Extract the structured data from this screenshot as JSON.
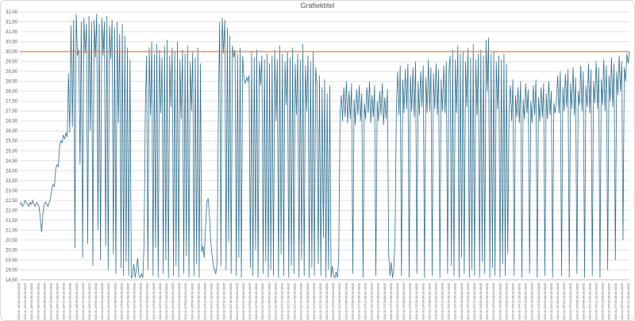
{
  "chart_data": {
    "type": "line",
    "title": "Grafiektitel",
    "legend": "none",
    "grid": true,
    "colors": {
      "grid": "#e0e0e0",
      "axis_line": "#bdbdbd",
      "axis_text": "#595959",
      "title_text": "#595959",
      "background": "#ffffff",
      "border": "#d9d9d9"
    },
    "y_axis": {
      "min": 18.5,
      "max": 32.0,
      "step": 0.5,
      "tick_labels": [
        "32,00",
        "31,50",
        "31,00",
        "30,50",
        "30,00",
        "29,50",
        "29,00",
        "28,50",
        "28,00",
        "27,50",
        "27,00",
        "26,50",
        "26,00",
        "25,50",
        "25,00",
        "24,50",
        "24,00",
        "23,50",
        "23,00",
        "22,50",
        "22,00",
        "21,50",
        "21,00",
        "20,50",
        "20,00",
        "19,50",
        "19,00",
        "18,50"
      ]
    },
    "x_axis": {
      "tick_labels": [
        "2016-01-18T00:00:00.000Z",
        "2016-01-18T02:00:00.000Z",
        "2016-01-18T04:00:00.000Z",
        "2016-01-18T06:00:00.000Z",
        "2016-01-18T08:00:00.000Z",
        "2016-01-18T10:00:00.000Z",
        "2016-01-18T12:00:00.000Z",
        "2016-01-18T14:00:00.000Z",
        "2016-01-18T16:00:00.000Z",
        "2016-01-18T18:00:00.000Z",
        "2016-01-18T20:00:00.000Z",
        "2016-01-18T22:00:00.000Z",
        "2016-01-19T00:00:00.000Z",
        "2016-01-19T02:00:00.000Z",
        "2016-01-19T04:00:00.000Z",
        "2016-01-19T06:00:00.000Z",
        "2016-01-19T08:00:00.000Z",
        "2016-01-19T10:00:00.000Z",
        "2016-01-19T12:00:00.000Z",
        "2016-01-19T14:00:00.000Z",
        "2016-01-19T16:00:00.000Z",
        "2016-01-19T18:00:00.000Z",
        "2016-01-19T20:00:00.000Z",
        "2016-01-19T22:00:00.000Z",
        "2016-01-20T00:00:00.000Z",
        "2016-01-20T02:00:00.000Z",
        "2016-01-20T04:00:00.000Z",
        "2016-01-20T06:00:00.000Z",
        "2016-01-20T08:00:00.000Z",
        "2016-01-20T10:00:00.000Z",
        "2016-01-20T12:00:00.000Z",
        "2016-01-20T14:00:00.000Z",
        "2016-01-20T16:00:00.000Z",
        "2016-01-20T18:00:00.000Z",
        "2016-01-20T20:00:00.000Z",
        "2016-01-20T22:00:00.000Z",
        "2016-01-21T00:00:00.000Z",
        "2016-01-21T02:00:00.000Z",
        "2016-01-21T04:00:00.000Z",
        "2016-01-21T06:00:00.000Z",
        "2016-01-21T08:00:00.000Z",
        "2016-01-21T10:00:00.000Z",
        "2016-01-21T12:00:00.000Z",
        "2016-01-21T14:00:00.000Z",
        "2016-01-21T16:00:00.000Z",
        "2016-01-21T18:00:00.000Z",
        "2016-01-21T20:00:00.000Z",
        "2016-01-21T22:00:00.000Z",
        "2016-01-22T00:00:00.000Z",
        "2016-01-22T02:00:00.000Z",
        "2016-01-22T04:00:00.000Z",
        "2016-01-22T06:00:00.000Z",
        "2016-01-22T08:00:00.000Z",
        "2016-01-22T10:00:00.000Z",
        "2016-01-22T12:00:00.000Z",
        "2016-01-22T14:00:00.000Z",
        "2016-01-22T16:00:00.000Z",
        "2016-01-22T18:00:00.000Z",
        "2016-01-22T20:00:00.000Z",
        "2016-01-22T22:00:00.000Z",
        "2016-01-23T00:00:00.000Z",
        "2016-01-23T02:00:00.000Z",
        "2016-01-23T04:00:00.000Z",
        "2016-01-23T06:00:00.000Z",
        "2016-01-23T08:00:00.000Z",
        "2016-01-23T10:00:00.000Z",
        "2016-01-23T12:00:00.000Z",
        "2016-01-23T14:00:00.000Z",
        "2016-01-23T16:00:00.000Z",
        "2016-01-23T18:00:00.000Z",
        "2016-01-23T20:00:00.000Z",
        "2016-01-23T22:00:00.000Z",
        "2016-01-24T00:00:00.000Z",
        "2016-01-24T02:00:00.000Z",
        "2016-01-24T04:00:00.000Z",
        "2016-01-24T06:00:00.000Z",
        "2016-01-24T08:00:00.000Z",
        "2016-01-24T10:00:00.000Z",
        "2016-01-24T12:00:00.000Z",
        "2016-01-24T14:00:00.000Z",
        "2016-01-24T16:00:00.000Z",
        "2016-01-24T18:00:00.000Z",
        "2016-01-24T20:00:00.000Z",
        "2016-01-24T22:00:00.000Z",
        "2016-01-25T00:00:00.000Z",
        "2016-01-25T02:00:00.000Z",
        "2016-01-25T04:00:00.000Z",
        "2016-01-25T06:00:00.000Z",
        "2016-01-25T08:00:00.000Z",
        "2016-01-25T10:00:00.000Z",
        "2016-01-25T12:00:00.000Z",
        "2016-01-25T14:00:00.000Z",
        "2016-01-25T16:00:00.000Z",
        "2016-01-25T18:00:00.000Z",
        "2016-01-25T20:00:00.000Z",
        "2016-01-25T22:00:00.000Z"
      ]
    },
    "reference_line": {
      "value": 30.0,
      "color": "#ED7D31"
    },
    "series": [
      {
        "color": "#31708F",
        "values": [
          22.3,
          22.4,
          22.2,
          22.3,
          22.5,
          22.4,
          22.3,
          22.2,
          22.4,
          22.3,
          22.5,
          22.3,
          22.2,
          22.4,
          22.3,
          22.2,
          21.6,
          20.9,
          21.8,
          22.3,
          22.4,
          22.3,
          22.2,
          22.4,
          22.6,
          23.1,
          23.3,
          23.2,
          24.1,
          24.3,
          24.2,
          25.2,
          25.5,
          25.4,
          25.8,
          25.6,
          25.9,
          25.7,
          28.9,
          25.9,
          31.3,
          26.2,
          31.6,
          20.1,
          31.9,
          29.8,
          30.1,
          24.3,
          31.5,
          19.6,
          31.7,
          29.9,
          31.4,
          20.3,
          31.8,
          26.0,
          31.5,
          19.2,
          31.6,
          29.7,
          31.9,
          21.0,
          31.4,
          19.5,
          31.7,
          29.8,
          31.5,
          20.2,
          31.8,
          19.0,
          31.3,
          29.6,
          31.6,
          19.8,
          31.2,
          18.8,
          31.5,
          26.4,
          30.9,
          19.1,
          31.4,
          18.7,
          30.8,
          19.4,
          30.2,
          18.7,
          29.6,
          18.6,
          18.7,
          19.3,
          18.6,
          19.0,
          19.6,
          18.7,
          18.6,
          18.8,
          18.6,
          20.3,
          27.1,
          29.8,
          19.0,
          30.2,
          26.8,
          30.5,
          18.7,
          29.9,
          20.1,
          30.4,
          18.6,
          30.1,
          26.9,
          29.7,
          18.8,
          30.3,
          19.5,
          30.6,
          18.6,
          29.8,
          27.2,
          30.2,
          18.7,
          30.0,
          19.2,
          30.5,
          18.6,
          29.6,
          26.6,
          30.1,
          18.8,
          29.9,
          19.7,
          30.3,
          18.6,
          29.5,
          27.0,
          30.0,
          18.7,
          29.7,
          19.3,
          30.2,
          18.6,
          29.4,
          19.9,
          20.2,
          19.6,
          21.1,
          22.4,
          22.6,
          21.8,
          20.5,
          19.8,
          19.3,
          19.0,
          18.8,
          19.4,
          26.8,
          31.5,
          19.2,
          31.7,
          29.9,
          31.6,
          19.0,
          31.2,
          20.4,
          30.8,
          18.8,
          30.3,
          29.7,
          30.1,
          18.7,
          29.9,
          19.6,
          30.2,
          18.6,
          29.8,
          28.6,
          28.4,
          28.7,
          28.5,
          28.8,
          19.1,
          30.0,
          18.7,
          29.7,
          20.0,
          30.1,
          18.6,
          29.5,
          28.3,
          29.8,
          18.8,
          29.6,
          19.4,
          29.9,
          18.6,
          29.4,
          19.0,
          29.8,
          18.7,
          30.1,
          26.5,
          29.6,
          18.6,
          30.3,
          19.8,
          29.9,
          18.7,
          29.5,
          27.3,
          30.0,
          18.6,
          29.7,
          19.2,
          30.2,
          18.8,
          29.4,
          26.8,
          29.9,
          18.6,
          29.6,
          19.5,
          30.4,
          18.7,
          29.3,
          27.0,
          29.8,
          18.6,
          29.5,
          19.1,
          30.0,
          18.7,
          29.2,
          28.4,
          19.3,
          28.8,
          18.7,
          28.2,
          20.6,
          28.6,
          18.6,
          27.9,
          19.0,
          28.3,
          18.6,
          19.2,
          18.7,
          18.6,
          18.9,
          18.6,
          19.5,
          26.9,
          27.8,
          26.5,
          28.2,
          26.7,
          28.5,
          26.4,
          28.0,
          26.6,
          28.4,
          18.8,
          27.6,
          26.3,
          28.1,
          26.8,
          28.3,
          26.5,
          27.9,
          18.6,
          27.4,
          26.6,
          28.2,
          26.9,
          28.5,
          26.4,
          27.8,
          26.7,
          28.3,
          18.7,
          27.5,
          26.5,
          28.0,
          26.8,
          28.4,
          26.3,
          27.7,
          26.6,
          28.1,
          19.8,
          18.7,
          19.4,
          18.6,
          19.1,
          20.5,
          27.2,
          29.0,
          26.8,
          29.3,
          18.7,
          28.6,
          26.9,
          29.1,
          27.1,
          29.4,
          18.6,
          28.8,
          27.0,
          29.2,
          26.7,
          29.5,
          18.8,
          28.5,
          26.8,
          29.0,
          27.2,
          29.3,
          18.6,
          28.7,
          26.9,
          29.6,
          27.0,
          29.2,
          18.7,
          28.9,
          27.1,
          29.4,
          26.8,
          29.1,
          18.6,
          28.6,
          27.0,
          29.3,
          26.9,
          29.5,
          18.8,
          29.0,
          29.8,
          19.2,
          30.1,
          18.7,
          29.6,
          26.9,
          30.3,
          18.6,
          29.9,
          19.6,
          30.0,
          18.8,
          29.5,
          27.2,
          30.2,
          18.6,
          29.7,
          19.0,
          30.4,
          18.7,
          29.6,
          26.8,
          29.9,
          18.6,
          30.1,
          19.4,
          29.8,
          18.8,
          30.6,
          28.0,
          30.7,
          18.6,
          29.9,
          19.1,
          30.0,
          18.7,
          29.5,
          27.1,
          29.8,
          18.6,
          29.6,
          19.3,
          29.9,
          18.7,
          29.4,
          19.8,
          27.0,
          28.3,
          26.5,
          28.6,
          18.7,
          27.8,
          26.7,
          28.2,
          26.4,
          28.5,
          18.6,
          27.6,
          26.6,
          28.4,
          26.9,
          28.1,
          18.8,
          27.5,
          26.4,
          28.3,
          26.8,
          28.6,
          18.6,
          27.7,
          26.5,
          28.2,
          26.7,
          28.4,
          18.7,
          27.9,
          26.6,
          28.5,
          26.8,
          28.0,
          18.6,
          27.4,
          26.9,
          27.5,
          28.8,
          26.9,
          29.0,
          18.7,
          28.2,
          27.0,
          28.9,
          27.2,
          29.1,
          18.6,
          28.4,
          27.1,
          29.2,
          26.8,
          28.7,
          18.8,
          28.0,
          27.3,
          29.3,
          27.0,
          29.0,
          18.6,
          28.3,
          27.2,
          29.4,
          26.9,
          29.1,
          18.7,
          28.5,
          27.4,
          29.5,
          27.1,
          29.2,
          18.6,
          28.6,
          27.3,
          29.6,
          27.0,
          29.3,
          19.0,
          28.8,
          27.5,
          29.7,
          27.2,
          29.4,
          19.5,
          29.0,
          27.8,
          29.8,
          28.0,
          29.5,
          20.5,
          29.2,
          28.5,
          29.9,
          29.4,
          30.0
        ]
      }
    ]
  }
}
